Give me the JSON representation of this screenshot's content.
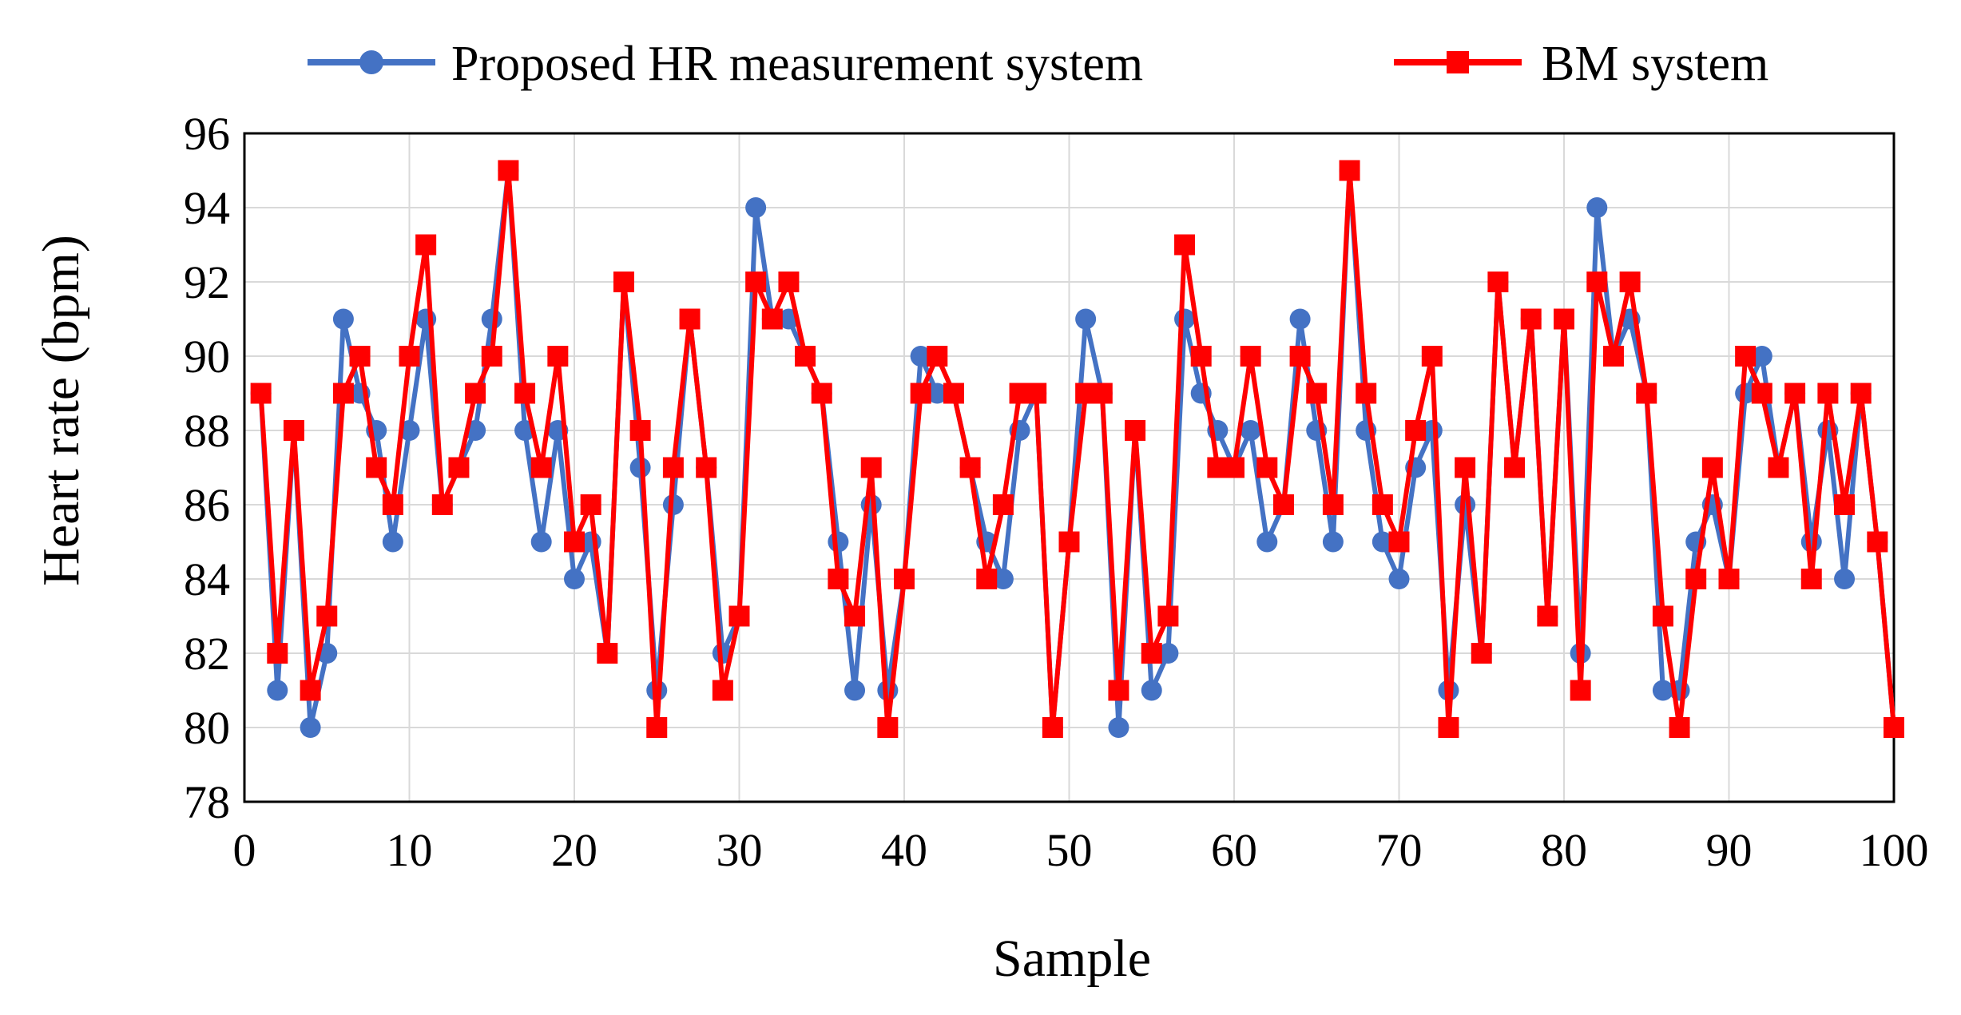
{
  "chart_data": {
    "type": "line",
    "title": "",
    "xlabel": "Sample",
    "ylabel": "Heart rate (bpm)",
    "xlim": [
      0,
      100
    ],
    "ylim": [
      78,
      96
    ],
    "xticks": [
      0,
      10,
      20,
      30,
      40,
      50,
      60,
      70,
      80,
      90,
      100
    ],
    "yticks": [
      78,
      80,
      82,
      84,
      86,
      88,
      90,
      92,
      94,
      96
    ],
    "grid": true,
    "legend": "top",
    "x": [
      1,
      2,
      3,
      4,
      5,
      6,
      7,
      8,
      9,
      10,
      11,
      12,
      13,
      14,
      15,
      16,
      17,
      18,
      19,
      20,
      21,
      22,
      23,
      24,
      25,
      26,
      27,
      28,
      29,
      30,
      31,
      32,
      33,
      34,
      35,
      36,
      37,
      38,
      39,
      40,
      41,
      42,
      43,
      44,
      45,
      46,
      47,
      48,
      49,
      50,
      51,
      52,
      53,
      54,
      55,
      56,
      57,
      58,
      59,
      60,
      61,
      62,
      63,
      64,
      65,
      66,
      67,
      68,
      69,
      70,
      71,
      72,
      73,
      74,
      75,
      76,
      77,
      78,
      79,
      80,
      81,
      82,
      83,
      84,
      85,
      86,
      87,
      88,
      89,
      90,
      91,
      92,
      93,
      94,
      95,
      96,
      97,
      98,
      99,
      100
    ],
    "series": [
      {
        "name": "Proposed HR measurement system",
        "color": "#4472c4",
        "marker": "circle",
        "values": [
          89,
          81,
          88,
          80,
          82,
          91,
          89,
          88,
          85,
          88,
          91,
          86,
          87,
          88,
          91,
          95,
          88,
          85,
          88,
          84,
          85,
          82,
          92,
          87,
          81,
          86,
          91,
          87,
          82,
          83,
          94,
          91,
          91,
          90,
          89,
          85,
          81,
          86,
          81,
          84,
          90,
          89,
          89,
          87,
          85,
          84,
          88,
          89,
          80,
          85,
          91,
          89,
          80,
          88,
          81,
          82,
          91,
          89,
          88,
          87,
          88,
          85,
          86,
          91,
          88,
          85,
          95,
          88,
          85,
          84,
          87,
          88,
          81,
          86,
          82,
          92,
          87,
          91,
          83,
          91,
          82,
          94,
          90,
          91,
          89,
          81,
          81,
          85,
          86,
          84,
          89,
          90,
          87,
          89,
          85,
          88,
          84,
          89,
          85,
          80
        ]
      },
      {
        "name": "BM system",
        "color": "#ff0000",
        "marker": "square",
        "values": [
          89,
          82,
          88,
          81,
          83,
          89,
          90,
          87,
          86,
          90,
          93,
          86,
          87,
          89,
          90,
          95,
          89,
          87,
          90,
          85,
          86,
          82,
          92,
          88,
          80,
          87,
          91,
          87,
          81,
          83,
          92,
          91,
          92,
          90,
          89,
          84,
          83,
          87,
          80,
          84,
          89,
          90,
          89,
          87,
          84,
          86,
          89,
          89,
          80,
          85,
          89,
          89,
          81,
          88,
          82,
          83,
          93,
          90,
          87,
          87,
          90,
          87,
          86,
          90,
          89,
          86,
          95,
          89,
          86,
          85,
          88,
          90,
          80,
          87,
          82,
          92,
          87,
          91,
          83,
          91,
          81,
          92,
          90,
          92,
          89,
          83,
          80,
          84,
          87,
          84,
          90,
          89,
          87,
          89,
          84,
          89,
          86,
          89,
          85,
          80
        ]
      }
    ]
  }
}
